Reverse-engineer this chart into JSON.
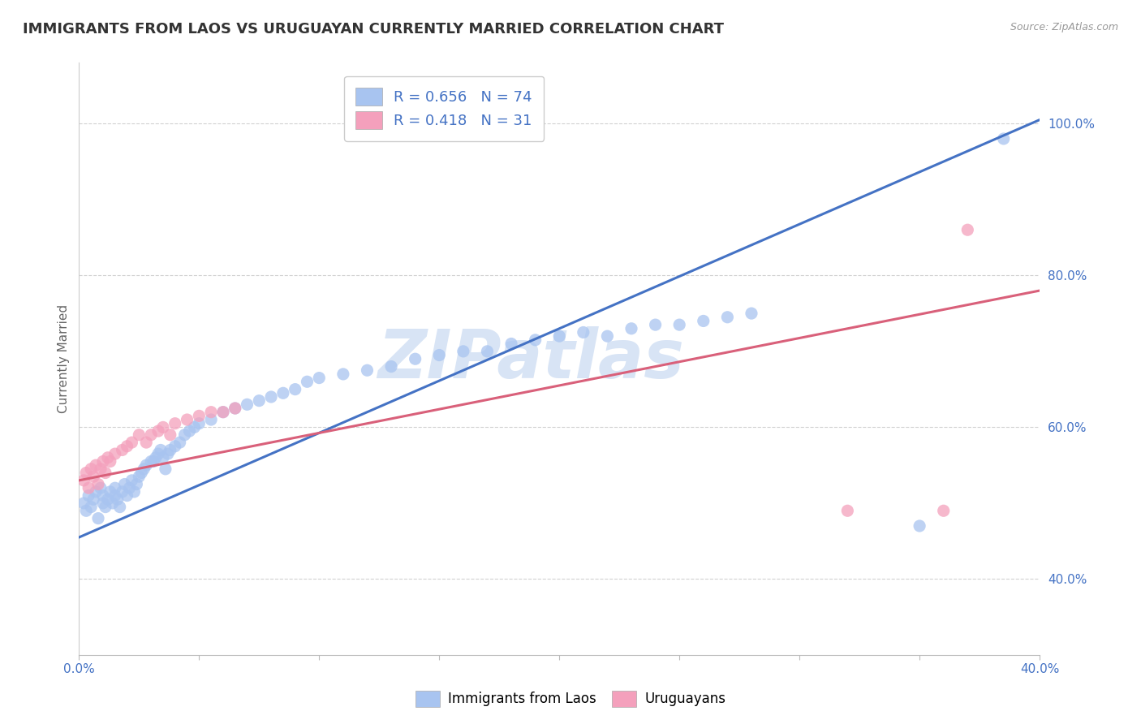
{
  "title": "IMMIGRANTS FROM LAOS VS URUGUAYAN CURRENTLY MARRIED CORRELATION CHART",
  "source_text": "Source: ZipAtlas.com",
  "ylabel": "Currently Married",
  "xmin": 0.0,
  "xmax": 0.4,
  "ymin": 0.3,
  "ymax": 1.08,
  "xticks": [
    0.0,
    0.05,
    0.1,
    0.15,
    0.2,
    0.25,
    0.3,
    0.35,
    0.4
  ],
  "xticklabels": [
    "0.0%",
    "",
    "",
    "",
    "",
    "",
    "",
    "",
    "40.0%"
  ],
  "ytick_positions": [
    0.4,
    0.6,
    0.8,
    1.0
  ],
  "yticklabels": [
    "40.0%",
    "60.0%",
    "80.0%",
    "100.0%"
  ],
  "blue_color": "#A8C4F0",
  "pink_color": "#F4A0BC",
  "blue_line_color": "#4472C4",
  "pink_line_color": "#D9607A",
  "R_blue": 0.656,
  "N_blue": 74,
  "R_pink": 0.418,
  "N_pink": 31,
  "watermark": "ZIPatlas",
  "legend_label_blue": "Immigrants from Laos",
  "legend_label_pink": "Uruguayans",
  "blue_scatter_x": [
    0.002,
    0.003,
    0.004,
    0.005,
    0.006,
    0.007,
    0.008,
    0.009,
    0.01,
    0.01,
    0.011,
    0.012,
    0.013,
    0.014,
    0.015,
    0.015,
    0.016,
    0.017,
    0.018,
    0.019,
    0.02,
    0.021,
    0.022,
    0.023,
    0.024,
    0.025,
    0.026,
    0.027,
    0.028,
    0.03,
    0.031,
    0.032,
    0.033,
    0.034,
    0.035,
    0.036,
    0.037,
    0.038,
    0.04,
    0.042,
    0.044,
    0.046,
    0.048,
    0.05,
    0.055,
    0.06,
    0.065,
    0.07,
    0.075,
    0.08,
    0.085,
    0.09,
    0.095,
    0.1,
    0.11,
    0.12,
    0.13,
    0.14,
    0.15,
    0.16,
    0.17,
    0.18,
    0.19,
    0.2,
    0.21,
    0.22,
    0.23,
    0.24,
    0.25,
    0.26,
    0.27,
    0.28,
    0.35,
    0.385
  ],
  "blue_scatter_y": [
    0.5,
    0.49,
    0.51,
    0.495,
    0.505,
    0.515,
    0.48,
    0.52,
    0.5,
    0.51,
    0.495,
    0.505,
    0.515,
    0.5,
    0.51,
    0.52,
    0.505,
    0.495,
    0.515,
    0.525,
    0.51,
    0.52,
    0.53,
    0.515,
    0.525,
    0.535,
    0.54,
    0.545,
    0.55,
    0.555,
    0.555,
    0.56,
    0.565,
    0.57,
    0.56,
    0.545,
    0.565,
    0.57,
    0.575,
    0.58,
    0.59,
    0.595,
    0.6,
    0.605,
    0.61,
    0.62,
    0.625,
    0.63,
    0.635,
    0.64,
    0.645,
    0.65,
    0.66,
    0.665,
    0.67,
    0.675,
    0.68,
    0.69,
    0.695,
    0.7,
    0.7,
    0.71,
    0.715,
    0.72,
    0.725,
    0.72,
    0.73,
    0.735,
    0.735,
    0.74,
    0.745,
    0.75,
    0.47,
    0.98
  ],
  "pink_scatter_x": [
    0.002,
    0.003,
    0.004,
    0.005,
    0.006,
    0.007,
    0.008,
    0.009,
    0.01,
    0.011,
    0.012,
    0.013,
    0.015,
    0.018,
    0.02,
    0.022,
    0.025,
    0.028,
    0.03,
    0.033,
    0.035,
    0.038,
    0.04,
    0.045,
    0.05,
    0.055,
    0.06,
    0.065,
    0.32,
    0.36,
    0.37
  ],
  "pink_scatter_y": [
    0.53,
    0.54,
    0.52,
    0.545,
    0.535,
    0.55,
    0.525,
    0.545,
    0.555,
    0.54,
    0.56,
    0.555,
    0.565,
    0.57,
    0.575,
    0.58,
    0.59,
    0.58,
    0.59,
    0.595,
    0.6,
    0.59,
    0.605,
    0.61,
    0.615,
    0.62,
    0.62,
    0.625,
    0.49,
    0.49,
    0.86
  ],
  "blue_trend_x": [
    0.0,
    0.4
  ],
  "blue_trend_y": [
    0.455,
    1.005
  ],
  "pink_trend_x": [
    0.0,
    0.4
  ],
  "pink_trend_y": [
    0.53,
    0.78
  ],
  "background_color": "#FFFFFF",
  "grid_color": "#CCCCCC",
  "title_fontsize": 13,
  "axis_label_fontsize": 11,
  "tick_fontsize": 11,
  "watermark_color": "#D8E4F5",
  "watermark_fontsize": 60
}
